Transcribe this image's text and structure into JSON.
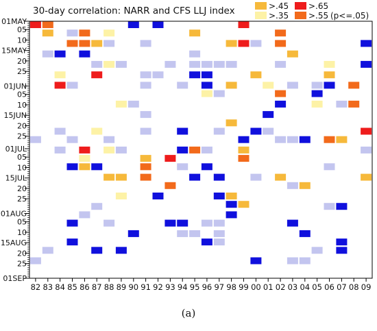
{
  "chart_data": {
    "type": "heatmap",
    "title": "30-day correlation: NARR and CFS LLJ index",
    "x_categories": [
      "82",
      "83",
      "84",
      "85",
      "86",
      "87",
      "88",
      "89",
      "90",
      "91",
      "92",
      "93",
      "94",
      "95",
      "96",
      "97",
      "98",
      "99",
      "00",
      "01",
      "02",
      "03",
      "04",
      "05",
      "06",
      "07",
      "08",
      "09"
    ],
    "y_tick_labels": [
      {
        "day": 0,
        "label": "01MAY"
      },
      {
        "day": 4,
        "label": "05"
      },
      {
        "day": 9,
        "label": "10"
      },
      {
        "day": 14,
        "label": "15MAY"
      },
      {
        "day": 19,
        "label": "20"
      },
      {
        "day": 24,
        "label": "25"
      },
      {
        "day": 31,
        "label": "01JUN"
      },
      {
        "day": 35,
        "label": "05"
      },
      {
        "day": 40,
        "label": "10"
      },
      {
        "day": 45,
        "label": "15JUN"
      },
      {
        "day": 50,
        "label": "20"
      },
      {
        "day": 55,
        "label": "25"
      },
      {
        "day": 61,
        "label": "01JUL"
      },
      {
        "day": 65,
        "label": "05"
      },
      {
        "day": 70,
        "label": "10"
      },
      {
        "day": 75,
        "label": "15JUL"
      },
      {
        "day": 80,
        "label": "20"
      },
      {
        "day": 85,
        "label": "25"
      },
      {
        "day": 92,
        "label": "01AUG"
      },
      {
        "day": 96,
        "label": "05"
      },
      {
        "day": 101,
        "label": "10"
      },
      {
        "day": 106,
        "label": "15AUG"
      },
      {
        "day": 111,
        "label": "20"
      },
      {
        "day": 116,
        "label": "25"
      },
      {
        "day": 123,
        "label": "01SEP"
      }
    ],
    "day_range": [
      0,
      123
    ],
    "legend": [
      {
        "label": ">.45",
        "color": "#f6b93b",
        "key": "c45"
      },
      {
        "label": ">.65",
        "color": "#ee1c1c",
        "key": "c65"
      },
      {
        "label": ">.35",
        "color": "#fdf2a6",
        "key": "c35"
      },
      {
        "label": ">.55",
        "color": "#f26a1b",
        "key": "c55"
      },
      {
        "label": "(p<=.05)",
        "key": "sig"
      }
    ],
    "colors": {
      "nlow": "#c3c5ef",
      "nhigh": "#1010dd"
    },
    "cells": [
      [
        0,
        0,
        "c65"
      ],
      [
        1,
        0,
        "c55"
      ],
      [
        8,
        0,
        "nhigh"
      ],
      [
        10,
        0,
        "nhigh"
      ],
      [
        17,
        0,
        "c65"
      ],
      [
        1,
        4,
        "c45"
      ],
      [
        3,
        4,
        "nlow"
      ],
      [
        4,
        4,
        "c55"
      ],
      [
        6,
        4,
        "c35"
      ],
      [
        13,
        4,
        "c45"
      ],
      [
        20,
        4,
        "c55"
      ],
      [
        3,
        9,
        "c55"
      ],
      [
        4,
        9,
        "c55"
      ],
      [
        5,
        9,
        "c45"
      ],
      [
        6,
        9,
        "nlow"
      ],
      [
        9,
        9,
        "nlow"
      ],
      [
        16,
        9,
        "c45"
      ],
      [
        17,
        9,
        "c65"
      ],
      [
        18,
        9,
        "nlow"
      ],
      [
        20,
        9,
        "c55"
      ],
      [
        27,
        9,
        "nhigh"
      ],
      [
        1,
        14,
        "nlow"
      ],
      [
        2,
        14,
        "nhigh"
      ],
      [
        4,
        14,
        "nhigh"
      ],
      [
        13,
        14,
        "nlow"
      ],
      [
        21,
        14,
        "c45"
      ],
      [
        5,
        19,
        "nlow"
      ],
      [
        6,
        19,
        "c35"
      ],
      [
        7,
        19,
        "nlow"
      ],
      [
        11,
        19,
        "nlow"
      ],
      [
        13,
        19,
        "nlow"
      ],
      [
        14,
        19,
        "nlow"
      ],
      [
        15,
        19,
        "nlow"
      ],
      [
        16,
        19,
        "nlow"
      ],
      [
        20,
        19,
        "nlow"
      ],
      [
        24,
        19,
        "c35"
      ],
      [
        27,
        19,
        "nhigh"
      ],
      [
        2,
        24,
        "c35"
      ],
      [
        5,
        24,
        "c65"
      ],
      [
        9,
        24,
        "nlow"
      ],
      [
        10,
        24,
        "nlow"
      ],
      [
        13,
        24,
        "nhigh"
      ],
      [
        14,
        24,
        "nhigh"
      ],
      [
        18,
        24,
        "c45"
      ],
      [
        24,
        24,
        "c45"
      ],
      [
        2,
        29,
        "c65"
      ],
      [
        3,
        29,
        "nlow"
      ],
      [
        9,
        29,
        "nlow"
      ],
      [
        12,
        29,
        "nlow"
      ],
      [
        14,
        29,
        "nhigh"
      ],
      [
        16,
        29,
        "c45"
      ],
      [
        19,
        29,
        "c35"
      ],
      [
        21,
        29,
        "nlow"
      ],
      [
        23,
        29,
        "nlow"
      ],
      [
        24,
        29,
        "nhigh"
      ],
      [
        26,
        29,
        "c55"
      ],
      [
        14,
        33,
        "c35"
      ],
      [
        15,
        33,
        "nlow"
      ],
      [
        20,
        33,
        "c55"
      ],
      [
        23,
        33,
        "nhigh"
      ],
      [
        7,
        38,
        "c35"
      ],
      [
        8,
        38,
        "nlow"
      ],
      [
        20,
        38,
        "nhigh"
      ],
      [
        23,
        38,
        "c35"
      ],
      [
        25,
        38,
        "nlow"
      ],
      [
        26,
        38,
        "c55"
      ],
      [
        9,
        43,
        "nlow"
      ],
      [
        19,
        43,
        "nhigh"
      ],
      [
        16,
        47,
        "c45"
      ],
      [
        2,
        51,
        "nlow"
      ],
      [
        5,
        51,
        "c35"
      ],
      [
        9,
        51,
        "nlow"
      ],
      [
        12,
        51,
        "nhigh"
      ],
      [
        15,
        51,
        "nlow"
      ],
      [
        18,
        51,
        "nhigh"
      ],
      [
        19,
        51,
        "nlow"
      ],
      [
        27,
        51,
        "c65"
      ],
      [
        0,
        55,
        "nlow"
      ],
      [
        3,
        55,
        "nlow"
      ],
      [
        6,
        55,
        "nlow"
      ],
      [
        17,
        55,
        "nhigh"
      ],
      [
        20,
        55,
        "nlow"
      ],
      [
        21,
        55,
        "nlow"
      ],
      [
        22,
        55,
        "nhigh"
      ],
      [
        24,
        55,
        "c55"
      ],
      [
        25,
        55,
        "c45"
      ],
      [
        2,
        60,
        "nlow"
      ],
      [
        4,
        60,
        "c65"
      ],
      [
        6,
        60,
        "c35"
      ],
      [
        7,
        60,
        "nlow"
      ],
      [
        12,
        60,
        "nhigh"
      ],
      [
        13,
        60,
        "c55"
      ],
      [
        14,
        60,
        "nlow"
      ],
      [
        17,
        60,
        "c45"
      ],
      [
        27,
        60,
        "nlow"
      ],
      [
        4,
        64,
        "c35"
      ],
      [
        9,
        64,
        "c45"
      ],
      [
        11,
        64,
        "c65"
      ],
      [
        17,
        64,
        "c55"
      ],
      [
        3,
        68,
        "nhigh"
      ],
      [
        4,
        68,
        "c45"
      ],
      [
        5,
        68,
        "nhigh"
      ],
      [
        9,
        68,
        "c55"
      ],
      [
        12,
        68,
        "nlow"
      ],
      [
        14,
        68,
        "nhigh"
      ],
      [
        24,
        68,
        "nlow"
      ],
      [
        6,
        73,
        "c45"
      ],
      [
        7,
        73,
        "c45"
      ],
      [
        9,
        73,
        "c55"
      ],
      [
        13,
        73,
        "nhigh"
      ],
      [
        15,
        73,
        "nhigh"
      ],
      [
        18,
        73,
        "nlow"
      ],
      [
        20,
        73,
        "c45"
      ],
      [
        27,
        73,
        "c45"
      ],
      [
        11,
        77,
        "c55"
      ],
      [
        21,
        77,
        "nlow"
      ],
      [
        22,
        77,
        "c45"
      ],
      [
        7,
        82,
        "c35"
      ],
      [
        10,
        82,
        "nhigh"
      ],
      [
        15,
        82,
        "nhigh"
      ],
      [
        16,
        82,
        "c45"
      ],
      [
        16,
        86,
        "nhigh"
      ],
      [
        17,
        86,
        "c45"
      ],
      [
        5,
        87,
        "nlow"
      ],
      [
        24,
        87,
        "nlow"
      ],
      [
        25,
        87,
        "nhigh"
      ],
      [
        4,
        91,
        "nlow"
      ],
      [
        16,
        91,
        "nhigh"
      ],
      [
        3,
        95,
        "nhigh"
      ],
      [
        6,
        95,
        "nlow"
      ],
      [
        11,
        95,
        "nhigh"
      ],
      [
        12,
        95,
        "nhigh"
      ],
      [
        14,
        95,
        "nlow"
      ],
      [
        15,
        95,
        "nlow"
      ],
      [
        21,
        95,
        "nhigh"
      ],
      [
        8,
        100,
        "nhigh"
      ],
      [
        12,
        100,
        "nlow"
      ],
      [
        13,
        100,
        "nlow"
      ],
      [
        15,
        100,
        "nlow"
      ],
      [
        22,
        100,
        "nhigh"
      ],
      [
        3,
        104,
        "nhigh"
      ],
      [
        14,
        104,
        "nhigh"
      ],
      [
        15,
        104,
        "nlow"
      ],
      [
        25,
        104,
        "nhigh"
      ],
      [
        1,
        108,
        "nlow"
      ],
      [
        5,
        108,
        "nhigh"
      ],
      [
        7,
        108,
        "nhigh"
      ],
      [
        23,
        108,
        "nlow"
      ],
      [
        25,
        108,
        "nhigh"
      ],
      [
        0,
        113,
        "nlow"
      ],
      [
        18,
        113,
        "nhigh"
      ],
      [
        21,
        113,
        "nlow"
      ],
      [
        22,
        113,
        "nlow"
      ]
    ]
  },
  "caption": "(a)"
}
